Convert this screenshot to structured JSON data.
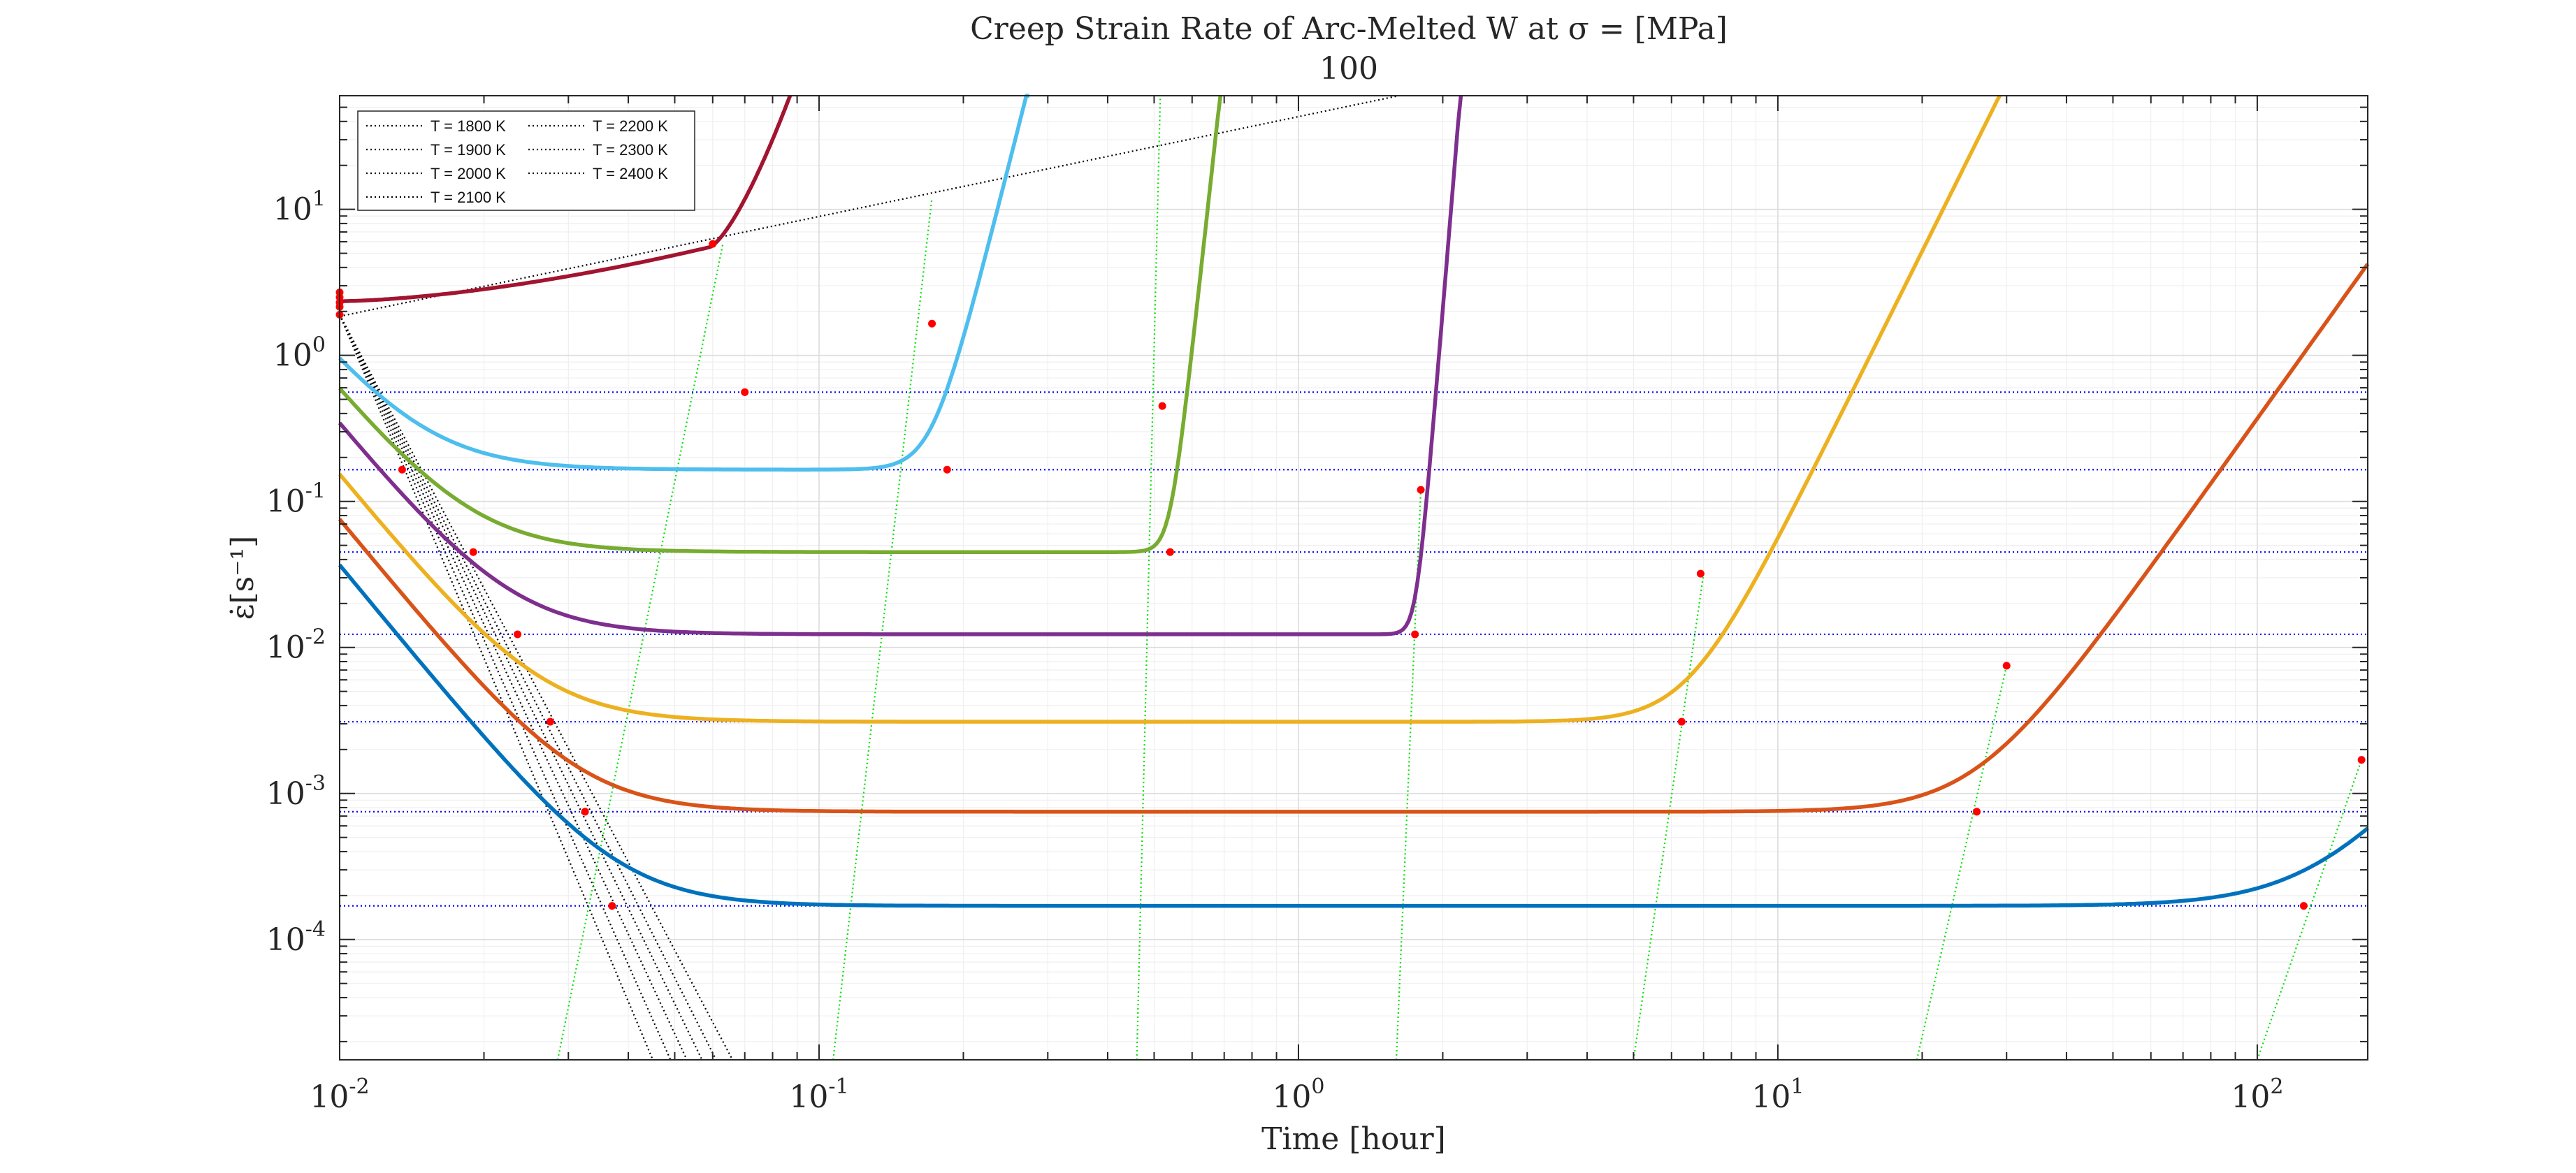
{
  "chart_data": {
    "type": "line",
    "title": "Creep Strain Rate of Arc-Melted W at σ = [MPa]",
    "subtitle": "100",
    "xlabel": "Time [hour]",
    "ylabel": "ε̇[s⁻¹]",
    "xscale": "log",
    "yscale": "log",
    "xlim": [
      0.01,
      170
    ],
    "ylim": [
      1.5e-05,
      60
    ],
    "grid": true,
    "minor_grid": true,
    "legend_position": "top-left",
    "legend_columns": 2,
    "x_ticks": [
      {
        "value": 0.01,
        "base": "10",
        "exp": "-2"
      },
      {
        "value": 0.1,
        "base": "10",
        "exp": "-1"
      },
      {
        "value": 1,
        "base": "10",
        "exp": "0"
      },
      {
        "value": 10,
        "base": "10",
        "exp": "1"
      },
      {
        "value": 100,
        "base": "10",
        "exp": "2"
      }
    ],
    "y_ticks": [
      {
        "value": 0.0001,
        "base": "10",
        "exp": "-4"
      },
      {
        "value": 0.001,
        "base": "10",
        "exp": "-3"
      },
      {
        "value": 0.01,
        "base": "10",
        "exp": "-2"
      },
      {
        "value": 0.1,
        "base": "10",
        "exp": "-1"
      },
      {
        "value": 1,
        "base": "10",
        "exp": "0"
      },
      {
        "value": 10,
        "base": "10",
        "exp": "1"
      }
    ],
    "legend": [
      {
        "label": "T = 1800 K",
        "style": "dotted",
        "color": "#000000"
      },
      {
        "label": "T = 1900 K",
        "style": "dotted",
        "color": "#000000"
      },
      {
        "label": "T = 2000 K",
        "style": "dotted",
        "color": "#000000"
      },
      {
        "label": "T = 2100 K",
        "style": "dotted",
        "color": "#000000"
      },
      {
        "label": "T = 2200 K",
        "style": "dotted",
        "color": "#000000"
      },
      {
        "label": "T = 2300 K",
        "style": "dotted",
        "color": "#000000"
      },
      {
        "label": "T = 2400 K",
        "style": "dotted",
        "color": "#000000"
      }
    ],
    "series": [
      {
        "color": "#0072BD",
        "steady": 0.00017,
        "x0": 0.0383,
        "t_tert": 135,
        "n_tert": 3.8
      },
      {
        "color": "#D95319",
        "steady": 0.00075,
        "x0": 0.0316,
        "t_tert": 26,
        "n_tert": 4.6
      },
      {
        "color": "#EDB120",
        "steady": 0.0031,
        "x0": 0.0264,
        "t_tert": 6.5,
        "n_tert": 6.6
      },
      {
        "color": "#7E2F8E",
        "steady": 0.0123,
        "x0": 0.0228,
        "t_tert": 1.76,
        "n_tert": 40
      },
      {
        "color": "#77AC30",
        "steady": 0.045,
        "x0": 0.0187,
        "t_tert": 0.54,
        "n_tert": 30
      },
      {
        "color": "#4DBEEE",
        "steady": 0.165,
        "x0": 0.0148,
        "t_tert": 0.172,
        "n_tert": 13
      },
      {
        "color": "#A2142F",
        "y_start": 2.35,
        "y_end": 5.5,
        "t_end": 0.059,
        "y_exit": 60,
        "t_exit": 0.087
      }
    ],
    "horizontal_reference_lines": {
      "color": "#0000FF",
      "style": "dotted",
      "values": [
        0.56,
        0.165,
        0.045,
        0.0123,
        0.0031,
        0.00075,
        0.00017
      ]
    },
    "green_reference_lines": {
      "color": "#00E000",
      "style": "dotted",
      "lines": [
        {
          "x_bottom": 0.0285,
          "x_top": 0.063,
          "y_top": 5.8
        },
        {
          "x_bottom": 0.107,
          "x_top": 0.172,
          "y_top": 12
        },
        {
          "x_bottom": 0.46,
          "x_top": 0.515,
          "y_top": 60
        },
        {
          "x_bottom": 1.6,
          "x_top": 1.8,
          "y_top": 0.12
        },
        {
          "x_bottom": 5.0,
          "x_top": 7.0,
          "y_top": 0.032
        },
        {
          "x_bottom": 19.5,
          "x_top": 30,
          "y_top": 0.0075
        },
        {
          "x_bottom": 100,
          "x_top": 165,
          "y_top": 0.0017
        }
      ]
    },
    "black_reference_lines": {
      "color": "#000000",
      "style": "dotted",
      "descending": [
        {
          "x0": 0.01,
          "y0": 1.9,
          "x1": 0.045,
          "y1": 1.5e-05
        },
        {
          "x0": 0.01,
          "y0": 1.9,
          "x1": 0.049,
          "y1": 1.5e-05
        },
        {
          "x0": 0.01,
          "y0": 1.9,
          "x1": 0.053,
          "y1": 1.5e-05
        },
        {
          "x0": 0.01,
          "y0": 1.9,
          "x1": 0.057,
          "y1": 1.5e-05
        },
        {
          "x0": 0.01,
          "y0": 1.9,
          "x1": 0.061,
          "y1": 1.5e-05
        },
        {
          "x0": 0.01,
          "y0": 1.9,
          "x1": 0.066,
          "y1": 1.5e-05
        }
      ],
      "ascending": {
        "x0": 0.01,
        "y0": 1.85,
        "x1": 1.62,
        "y1": 60
      }
    },
    "red_markers": [
      {
        "x": 0.0135,
        "y": 0.165
      },
      {
        "x": 0.019,
        "y": 0.045
      },
      {
        "x": 0.0235,
        "y": 0.0123
      },
      {
        "x": 0.0275,
        "y": 0.0031
      },
      {
        "x": 0.0325,
        "y": 0.00075
      },
      {
        "x": 0.037,
        "y": 0.00017
      },
      {
        "x": 0.06,
        "y": 5.8
      },
      {
        "x": 0.07,
        "y": 0.56
      },
      {
        "x": 0.172,
        "y": 1.65
      },
      {
        "x": 0.185,
        "y": 0.165
      },
      {
        "x": 0.52,
        "y": 0.45
      },
      {
        "x": 0.54,
        "y": 0.045
      },
      {
        "x": 1.8,
        "y": 0.12
      },
      {
        "x": 1.75,
        "y": 0.0123
      },
      {
        "x": 6.9,
        "y": 0.032
      },
      {
        "x": 6.3,
        "y": 0.0031
      },
      {
        "x": 30,
        "y": 0.0075
      },
      {
        "x": 26,
        "y": 0.00075
      },
      {
        "x": 165,
        "y": 0.0017
      },
      {
        "x": 125,
        "y": 0.00017
      },
      {
        "x": 0.01,
        "y": 2.7
      },
      {
        "x": 0.01,
        "y": 2.5
      },
      {
        "x": 0.01,
        "y": 2.3
      },
      {
        "x": 0.01,
        "y": 2.15
      },
      {
        "x": 0.01,
        "y": 1.9
      }
    ]
  }
}
